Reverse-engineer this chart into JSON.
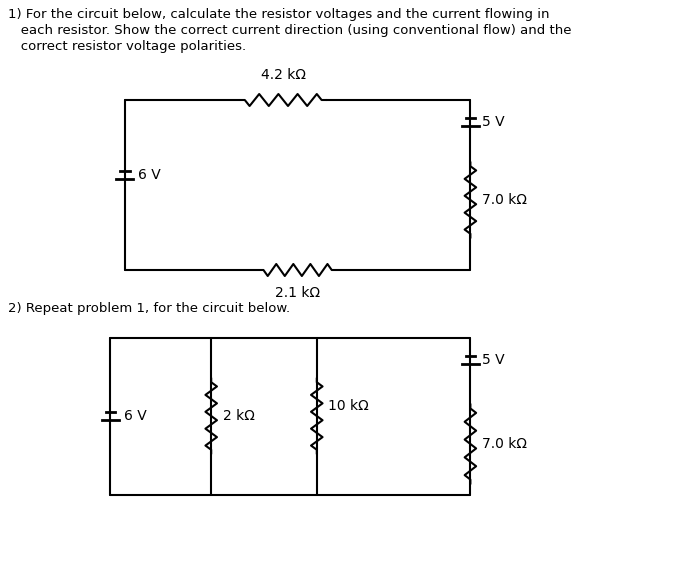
{
  "title1_line1": "1) For the circuit below, calculate the resistor voltages and the current flowing in",
  "title1_line2": "   each resistor. Show the correct current direction (using conventional flow) and the",
  "title1_line3": "   correct resistor voltage polarities.",
  "title2": "2) Repeat problem 1, for the circuit below.",
  "bg_color": "#ffffff",
  "text_color": "#000000",
  "line_color": "#000000",
  "circuit1": {
    "R_top_label": "4.2 kΩ",
    "R_bottom_label": "2.1 kΩ",
    "R_right_label": "7.0 kΩ",
    "V_left_label": "6 V",
    "V_right_label": "5 V"
  },
  "circuit2": {
    "R_left_label": "2 kΩ",
    "R_mid_label": "10 kΩ",
    "R_right_label": "7.0 kΩ",
    "V_left_label": "6 V",
    "V_right_label": "5 V"
  }
}
